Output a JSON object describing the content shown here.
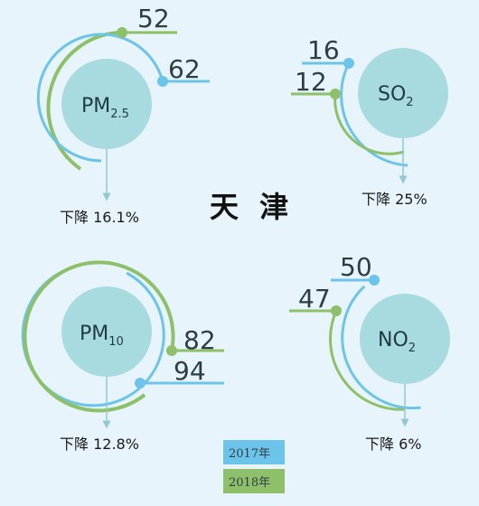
{
  "city": "天 津",
  "colors": {
    "y2017": "#6cc4ea",
    "y2018": "#8ec06a",
    "bubble": "#a8dbe0",
    "arrow": "#90c8d8"
  },
  "legend": [
    {
      "label": "2017年",
      "color": "#6cc4ea"
    },
    {
      "label": "2018年",
      "color": "#8ec06a"
    }
  ],
  "pollutants": [
    {
      "key": "pm25",
      "main": "PM",
      "sub": "2.5",
      "v2017": "62",
      "v2018": "52",
      "drop": "下降 16.1%"
    },
    {
      "key": "so2",
      "main": "SO",
      "sub": "2",
      "v2017": "16",
      "v2018": "12",
      "drop": "下降 25%"
    },
    {
      "key": "pm10",
      "main": "PM",
      "sub": "10",
      "v2017": "94",
      "v2018": "82",
      "drop": "下降 12.8%"
    },
    {
      "key": "no2",
      "main": "NO",
      "sub": "2",
      "v2017": "50",
      "v2018": "47",
      "drop": "下降 6%"
    }
  ]
}
